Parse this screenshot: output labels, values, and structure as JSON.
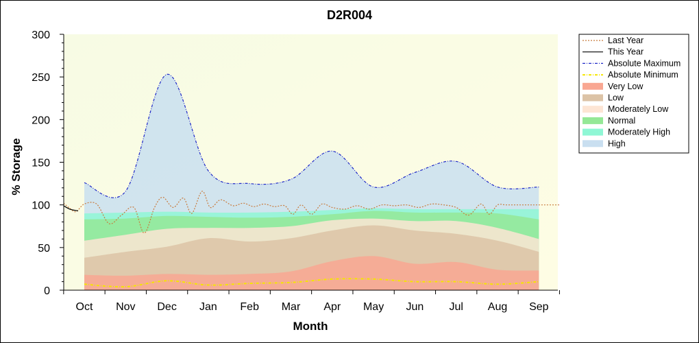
{
  "chart_data": {
    "type": "area",
    "title": "D2R004",
    "xlabel": "Month",
    "ylabel": "% Storage",
    "ylim": [
      0,
      300
    ],
    "yticks": [
      0,
      50,
      100,
      150,
      200,
      250,
      300
    ],
    "categories": [
      "Oct",
      "Nov",
      "Dec",
      "Jan",
      "Feb",
      "Mar",
      "Apr",
      "May",
      "Jun",
      "Jul",
      "Aug",
      "Sep"
    ],
    "grid": false,
    "legend_position": "right",
    "bands": [
      {
        "name": "Very Low",
        "color": "#f9a792",
        "upper": [
          18,
          17,
          19,
          18,
          19,
          22,
          34,
          40,
          31,
          33,
          24,
          23
        ]
      },
      {
        "name": "Low",
        "color": "#dcc3a6",
        "upper": [
          38,
          45,
          51,
          61,
          57,
          61,
          70,
          76,
          70,
          66,
          58,
          45
        ]
      },
      {
        "name": "Moderately Low",
        "color": "#fde5d4",
        "upper": [
          58,
          65,
          72,
          73,
          73,
          75,
          82,
          84,
          81,
          81,
          73,
          60
        ]
      },
      {
        "name": "Normal",
        "color": "#94e896",
        "upper": [
          83,
          84,
          87,
          86,
          85,
          86,
          89,
          93,
          91,
          91,
          90,
          83
        ]
      },
      {
        "name": "Moderately High",
        "color": "#8ff7d5",
        "upper": [
          90,
          91,
          92,
          91,
          91,
          92,
          94,
          96,
          95,
          95,
          95,
          95
        ]
      },
      {
        "name": "High",
        "color": "#c9dff0",
        "upper": [
          126,
          116,
          253,
          140,
          125,
          130,
          163,
          121,
          138,
          151,
          121,
          121
        ]
      }
    ],
    "series": [
      {
        "name": "Last Year",
        "color": "#c87a3c",
        "style": "dotted",
        "x": [
          -0.5,
          -0.35,
          -0.2,
          0,
          0.3,
          0.6,
          0.9,
          1.2,
          1.45,
          1.7,
          1.9,
          2.15,
          2.4,
          2.6,
          2.85,
          3.05,
          3.3,
          3.6,
          3.85,
          4.1,
          4.35,
          4.6,
          4.85,
          5.05,
          5.25,
          5.5,
          5.75,
          6.0,
          6.3,
          6.6,
          6.9,
          7.2,
          7.5,
          7.8,
          8.1,
          8.4,
          8.7,
          9.0,
          9.3,
          9.6,
          9.8,
          10.0,
          10.2,
          10.4,
          10.6,
          10.8,
          11.0,
          11.5
        ],
        "y": [
          102,
          96,
          92,
          101,
          101,
          78,
          88,
          97,
          67,
          97,
          109,
          97,
          108,
          90,
          116,
          97,
          106,
          99,
          102,
          98,
          101,
          98,
          99,
          89,
          100,
          89,
          101,
          97,
          95,
          99,
          95,
          100,
          99,
          100,
          97,
          101,
          100,
          97,
          88,
          101,
          89,
          100,
          100,
          100,
          100,
          100,
          100,
          100
        ]
      },
      {
        "name": "This Year",
        "color": "#000000",
        "style": "solid",
        "x": [
          -0.5,
          -0.35,
          -0.15
        ],
        "y": [
          99,
          95,
          93
        ]
      },
      {
        "name": "Absolute Maximum",
        "color": "#1e28c8",
        "style": "dashdot",
        "values": [
          126,
          116,
          253,
          140,
          125,
          130,
          163,
          121,
          138,
          151,
          121,
          121
        ]
      },
      {
        "name": "Absolute Minimum",
        "color": "#f5e600",
        "style": "dashdot",
        "values": [
          7,
          4,
          11,
          6,
          8,
          9,
          13,
          13,
          10,
          10,
          7,
          10
        ]
      }
    ],
    "legend": [
      "Last Year",
      "This Year",
      "Absolute Maximum",
      "Absolute Minimum",
      "Very Low",
      "Low",
      "Moderately Low",
      "Normal",
      "Moderately High",
      "High"
    ]
  }
}
